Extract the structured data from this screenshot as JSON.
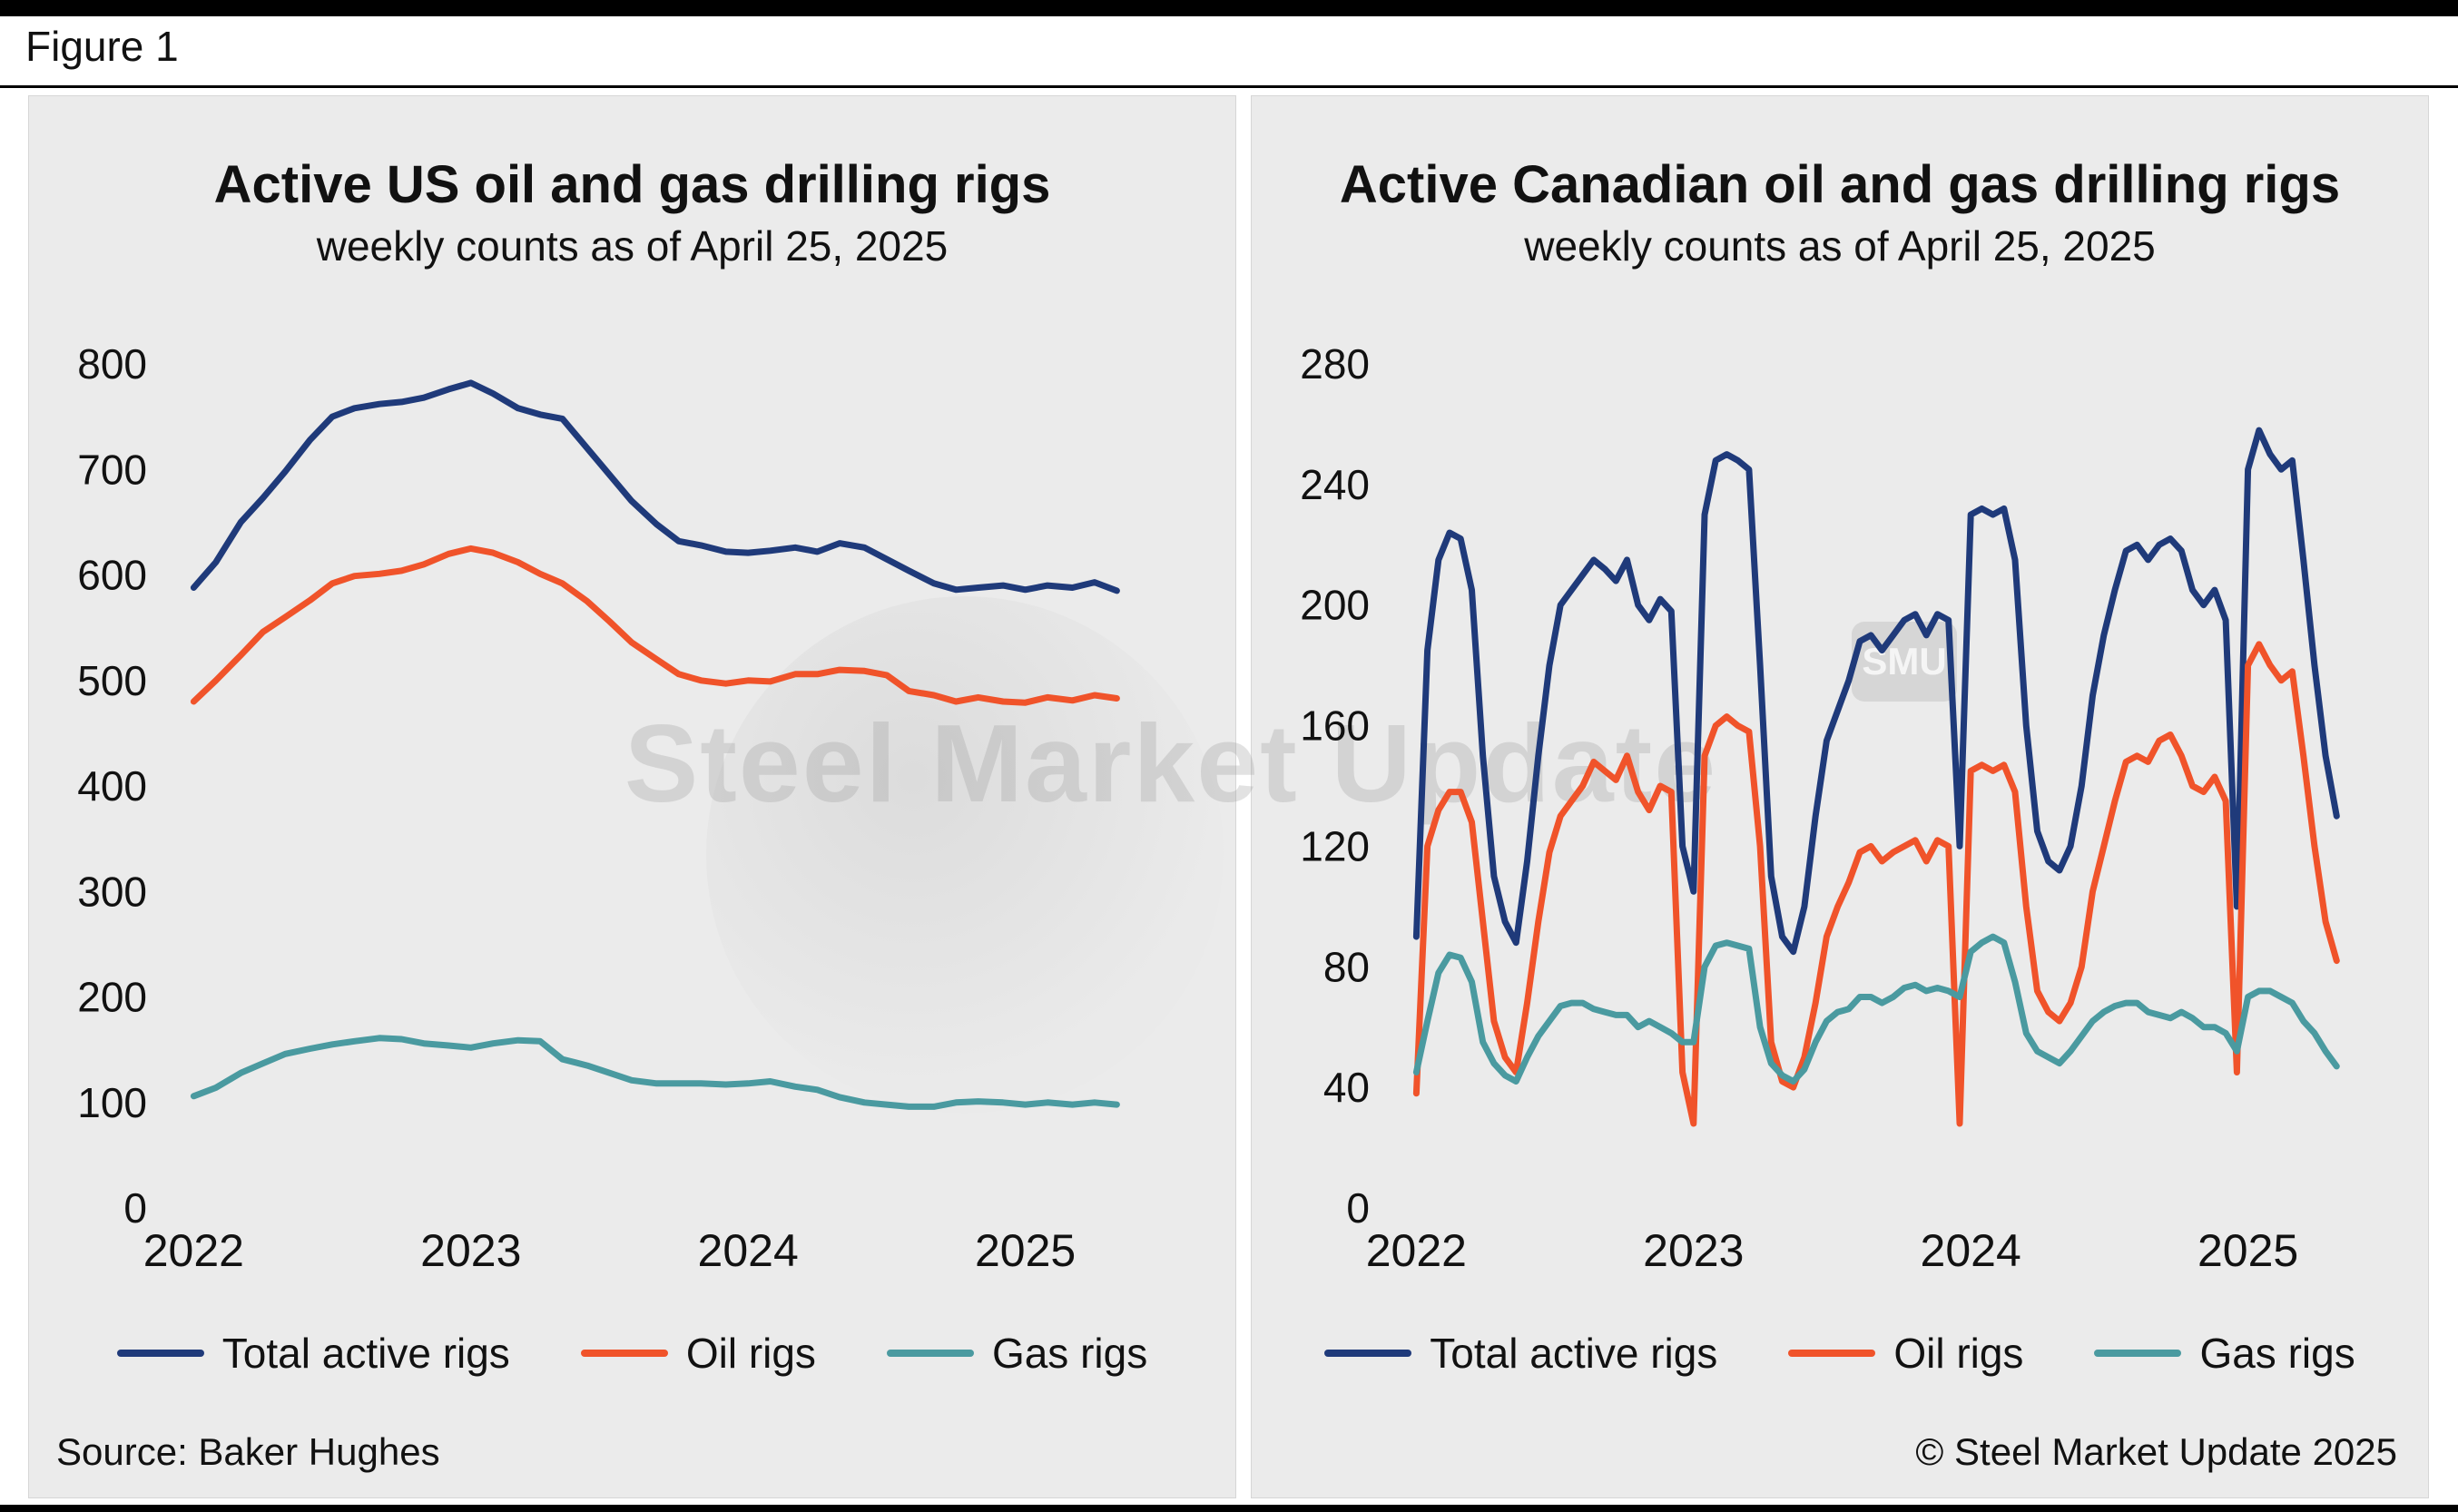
{
  "figure_label": "Figure 1",
  "source_note": "Source: Baker Hughes",
  "copyright_note": "© Steel Market Update 2025",
  "watermarks": {
    "main_text": "Steel Market Update",
    "badge_text": "SMU"
  },
  "colors": {
    "total": "#1f3a7a",
    "oil": "#f0532a",
    "gas": "#4a9aa0",
    "panel": "#ebebeb"
  },
  "chart_data": [
    {
      "type": "line",
      "title": "Active US oil and gas drilling rigs",
      "subtitle": "weekly counts as of April 25, 2025",
      "xlabel": "",
      "ylabel": "",
      "grid": false,
      "legend_position": "bottom",
      "xlim": [
        2021.93,
        2025.45
      ],
      "ylim": [
        0,
        800
      ],
      "yticks": [
        0,
        100,
        200,
        300,
        400,
        500,
        600,
        700,
        800
      ],
      "xticks": [
        2022,
        2023,
        2024,
        2025
      ],
      "x": [
        2022.0,
        2022.08,
        2022.17,
        2022.25,
        2022.33,
        2022.42,
        2022.5,
        2022.58,
        2022.67,
        2022.75,
        2022.83,
        2022.92,
        2023.0,
        2023.08,
        2023.17,
        2023.25,
        2023.33,
        2023.42,
        2023.5,
        2023.58,
        2023.67,
        2023.75,
        2023.83,
        2023.92,
        2024.0,
        2024.08,
        2024.17,
        2024.25,
        2024.33,
        2024.42,
        2024.5,
        2024.58,
        2024.67,
        2024.75,
        2024.83,
        2024.92,
        2025.0,
        2025.08,
        2025.17,
        2025.25,
        2025.33
      ],
      "series": [
        {
          "name": "Total active rigs",
          "color": "#1f3a7a",
          "values": [
            588,
            612,
            650,
            673,
            698,
            728,
            750,
            758,
            762,
            764,
            768,
            776,
            782,
            772,
            758,
            752,
            748,
            720,
            695,
            670,
            648,
            632,
            628,
            622,
            621,
            623,
            626,
            622,
            630,
            626,
            615,
            604,
            592,
            586,
            588,
            590,
            586,
            590,
            588,
            593,
            585
          ]
        },
        {
          "name": "Oil rigs",
          "color": "#f0532a",
          "values": [
            480,
            500,
            524,
            546,
            560,
            576,
            592,
            599,
            601,
            604,
            610,
            620,
            625,
            621,
            612,
            601,
            592,
            575,
            556,
            536,
            520,
            506,
            500,
            497,
            500,
            499,
            506,
            506,
            510,
            509,
            505,
            490,
            486,
            480,
            484,
            480,
            479,
            484,
            481,
            486,
            483
          ]
        },
        {
          "name": "Gas rigs",
          "color": "#4a9aa0",
          "values": [
            106,
            114,
            128,
            137,
            146,
            151,
            155,
            158,
            161,
            160,
            156,
            154,
            152,
            156,
            159,
            158,
            141,
            135,
            128,
            121,
            118,
            118,
            118,
            117,
            118,
            120,
            115,
            112,
            105,
            100,
            98,
            96,
            96,
            100,
            101,
            100,
            98,
            100,
            98,
            100,
            98
          ]
        }
      ]
    },
    {
      "type": "line",
      "title": "Active Canadian oil and gas drilling rigs",
      "subtitle": "weekly counts as of April 25, 2025",
      "xlabel": "",
      "ylabel": "",
      "grid": false,
      "legend_position": "bottom",
      "xlim": [
        2021.93,
        2025.45
      ],
      "ylim": [
        0,
        280
      ],
      "yticks": [
        0,
        40,
        80,
        120,
        160,
        200,
        240,
        280
      ],
      "xticks": [
        2022,
        2023,
        2024,
        2025
      ],
      "x": [
        2022.0,
        2022.04,
        2022.08,
        2022.12,
        2022.16,
        2022.2,
        2022.24,
        2022.28,
        2022.32,
        2022.36,
        2022.4,
        2022.44,
        2022.48,
        2022.52,
        2022.56,
        2022.6,
        2022.64,
        2022.68,
        2022.72,
        2022.76,
        2022.8,
        2022.84,
        2022.88,
        2022.92,
        2022.96,
        2023.0,
        2023.04,
        2023.08,
        2023.12,
        2023.16,
        2023.2,
        2023.24,
        2023.28,
        2023.32,
        2023.36,
        2023.4,
        2023.44,
        2023.48,
        2023.52,
        2023.56,
        2023.6,
        2023.64,
        2023.68,
        2023.72,
        2023.76,
        2023.8,
        2023.84,
        2023.88,
        2023.92,
        2023.96,
        2024.0,
        2024.04,
        2024.08,
        2024.12,
        2024.16,
        2024.2,
        2024.24,
        2024.28,
        2024.32,
        2024.36,
        2024.4,
        2024.44,
        2024.48,
        2024.52,
        2024.56,
        2024.6,
        2024.64,
        2024.68,
        2024.72,
        2024.76,
        2024.8,
        2024.84,
        2024.88,
        2024.92,
        2024.96,
        2025.0,
        2025.04,
        2025.08,
        2025.12,
        2025.16,
        2025.2,
        2025.24,
        2025.28,
        2025.32
      ],
      "series": [
        {
          "name": "Total active rigs",
          "color": "#1f3a7a",
          "values": [
            90,
            185,
            215,
            224,
            222,
            205,
            150,
            110,
            95,
            88,
            115,
            150,
            180,
            200,
            205,
            210,
            215,
            212,
            208,
            215,
            200,
            195,
            202,
            198,
            120,
            105,
            230,
            248,
            250,
            248,
            245,
            180,
            110,
            90,
            85,
            100,
            130,
            155,
            165,
            175,
            188,
            190,
            185,
            190,
            195,
            197,
            190,
            197,
            195,
            120,
            230,
            232,
            230,
            232,
            215,
            160,
            125,
            115,
            112,
            120,
            140,
            170,
            190,
            205,
            218,
            220,
            215,
            220,
            222,
            218,
            205,
            200,
            205,
            195,
            100,
            245,
            258,
            250,
            245,
            248,
            215,
            180,
            150,
            130
          ]
        },
        {
          "name": "Oil rigs",
          "color": "#f0532a",
          "values": [
            38,
            120,
            132,
            138,
            138,
            128,
            95,
            62,
            50,
            45,
            68,
            95,
            118,
            130,
            135,
            140,
            148,
            145,
            142,
            150,
            138,
            132,
            140,
            138,
            45,
            28,
            150,
            160,
            163,
            160,
            158,
            120,
            55,
            42,
            40,
            50,
            68,
            90,
            100,
            108,
            118,
            120,
            115,
            118,
            120,
            122,
            115,
            122,
            120,
            28,
            145,
            147,
            145,
            147,
            138,
            100,
            72,
            65,
            62,
            68,
            80,
            105,
            120,
            135,
            148,
            150,
            148,
            155,
            157,
            150,
            140,
            138,
            143,
            135,
            45,
            180,
            187,
            180,
            175,
            178,
            150,
            120,
            95,
            82
          ]
        },
        {
          "name": "Gas rigs",
          "color": "#4a9aa0",
          "values": [
            45,
            62,
            78,
            84,
            83,
            75,
            55,
            48,
            44,
            42,
            50,
            57,
            62,
            67,
            68,
            68,
            66,
            65,
            64,
            64,
            60,
            62,
            60,
            58,
            55,
            55,
            80,
            87,
            88,
            87,
            86,
            60,
            48,
            44,
            42,
            46,
            55,
            62,
            65,
            66,
            70,
            70,
            68,
            70,
            73,
            74,
            72,
            73,
            72,
            70,
            85,
            88,
            90,
            88,
            75,
            58,
            52,
            50,
            48,
            52,
            57,
            62,
            65,
            67,
            68,
            68,
            65,
            64,
            63,
            65,
            63,
            60,
            60,
            58,
            52,
            70,
            72,
            72,
            70,
            68,
            62,
            58,
            52,
            47
          ]
        }
      ]
    }
  ]
}
